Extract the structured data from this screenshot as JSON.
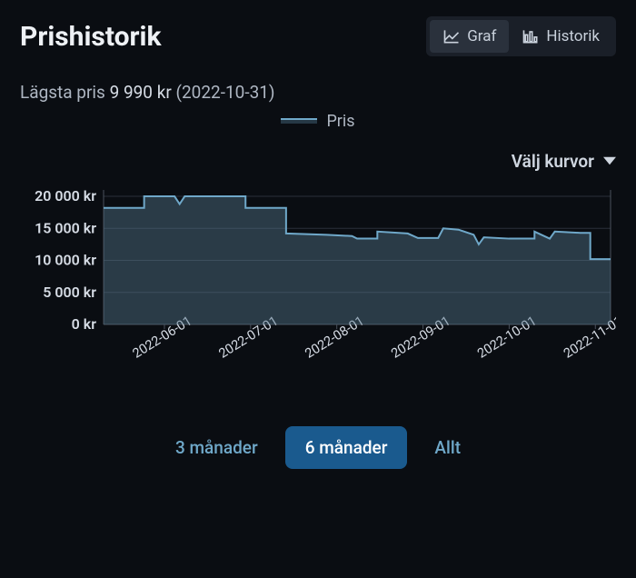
{
  "header": {
    "title": "Prishistorik",
    "toggles": {
      "graf": {
        "label": "Graf",
        "active": true
      },
      "historik": {
        "label": "Historik",
        "active": false
      }
    }
  },
  "lowest": {
    "prefix": "Lägsta pris",
    "price": "9 990 kr",
    "date": "(2022-10-31)"
  },
  "legend": {
    "label": "Pris"
  },
  "curves_selector": {
    "label": "Välj kurvor"
  },
  "chart": {
    "type": "area",
    "background_color": "#0a0d12",
    "grid_color": "#2a303a",
    "baseline_color": "#4a515c",
    "line_color": "#6fa8c9",
    "area_color": "rgba(82,115,137,0.45)",
    "line_width": 2,
    "y": {
      "min": 0,
      "max": 21000,
      "ticks": [
        0,
        5000,
        10000,
        15000,
        20000
      ],
      "tick_labels": [
        "0 kr",
        "5 000 kr",
        "10 000 kr",
        "15 000 kr",
        "20 000 kr"
      ],
      "label_fontsize": 16
    },
    "x": {
      "tick_labels": [
        "2022-06-01",
        "2022-07-01",
        "2022-08-01",
        "2022-09-01",
        "2022-10-01",
        "2022-11-01"
      ],
      "tick_positions_pct": [
        12,
        29,
        46,
        63,
        80,
        97
      ],
      "label_fontsize": 14.5,
      "label_rotation_deg": -32
    },
    "series": [
      {
        "x_pct": 0,
        "y": 18200
      },
      {
        "x_pct": 8,
        "y": 18200
      },
      {
        "x_pct": 8,
        "y": 20000
      },
      {
        "x_pct": 14,
        "y": 20000
      },
      {
        "x_pct": 15,
        "y": 18800
      },
      {
        "x_pct": 16,
        "y": 20000
      },
      {
        "x_pct": 28,
        "y": 20000
      },
      {
        "x_pct": 28,
        "y": 18200
      },
      {
        "x_pct": 36,
        "y": 18200
      },
      {
        "x_pct": 36,
        "y": 14200
      },
      {
        "x_pct": 44,
        "y": 14000
      },
      {
        "x_pct": 49,
        "y": 13800
      },
      {
        "x_pct": 50,
        "y": 13400
      },
      {
        "x_pct": 54,
        "y": 13400
      },
      {
        "x_pct": 54,
        "y": 14500
      },
      {
        "x_pct": 60,
        "y": 14200
      },
      {
        "x_pct": 62,
        "y": 13500
      },
      {
        "x_pct": 66,
        "y": 13500
      },
      {
        "x_pct": 67,
        "y": 15000
      },
      {
        "x_pct": 70,
        "y": 14800
      },
      {
        "x_pct": 73,
        "y": 14000
      },
      {
        "x_pct": 74,
        "y": 12500
      },
      {
        "x_pct": 75,
        "y": 13600
      },
      {
        "x_pct": 80,
        "y": 13400
      },
      {
        "x_pct": 85,
        "y": 13400
      },
      {
        "x_pct": 85,
        "y": 14500
      },
      {
        "x_pct": 88,
        "y": 13400
      },
      {
        "x_pct": 89,
        "y": 14500
      },
      {
        "x_pct": 94,
        "y": 14300
      },
      {
        "x_pct": 96,
        "y": 14300
      },
      {
        "x_pct": 96,
        "y": 10200
      },
      {
        "x_pct": 100,
        "y": 10200
      }
    ]
  },
  "ranges": {
    "r3m": {
      "label": "3 månader",
      "active": false
    },
    "r6m": {
      "label": "6 månader",
      "active": true
    },
    "rall": {
      "label": "Allt",
      "active": false
    }
  },
  "colors": {
    "bg": "#0a0d12",
    "text": "#d6dce5",
    "muted": "#aeb6c2",
    "accent": "#6fa8c9",
    "pill_active_bg": "#1a5a8e",
    "toggle_bg": "#1a1f28",
    "toggle_active_bg": "#2a313c"
  }
}
